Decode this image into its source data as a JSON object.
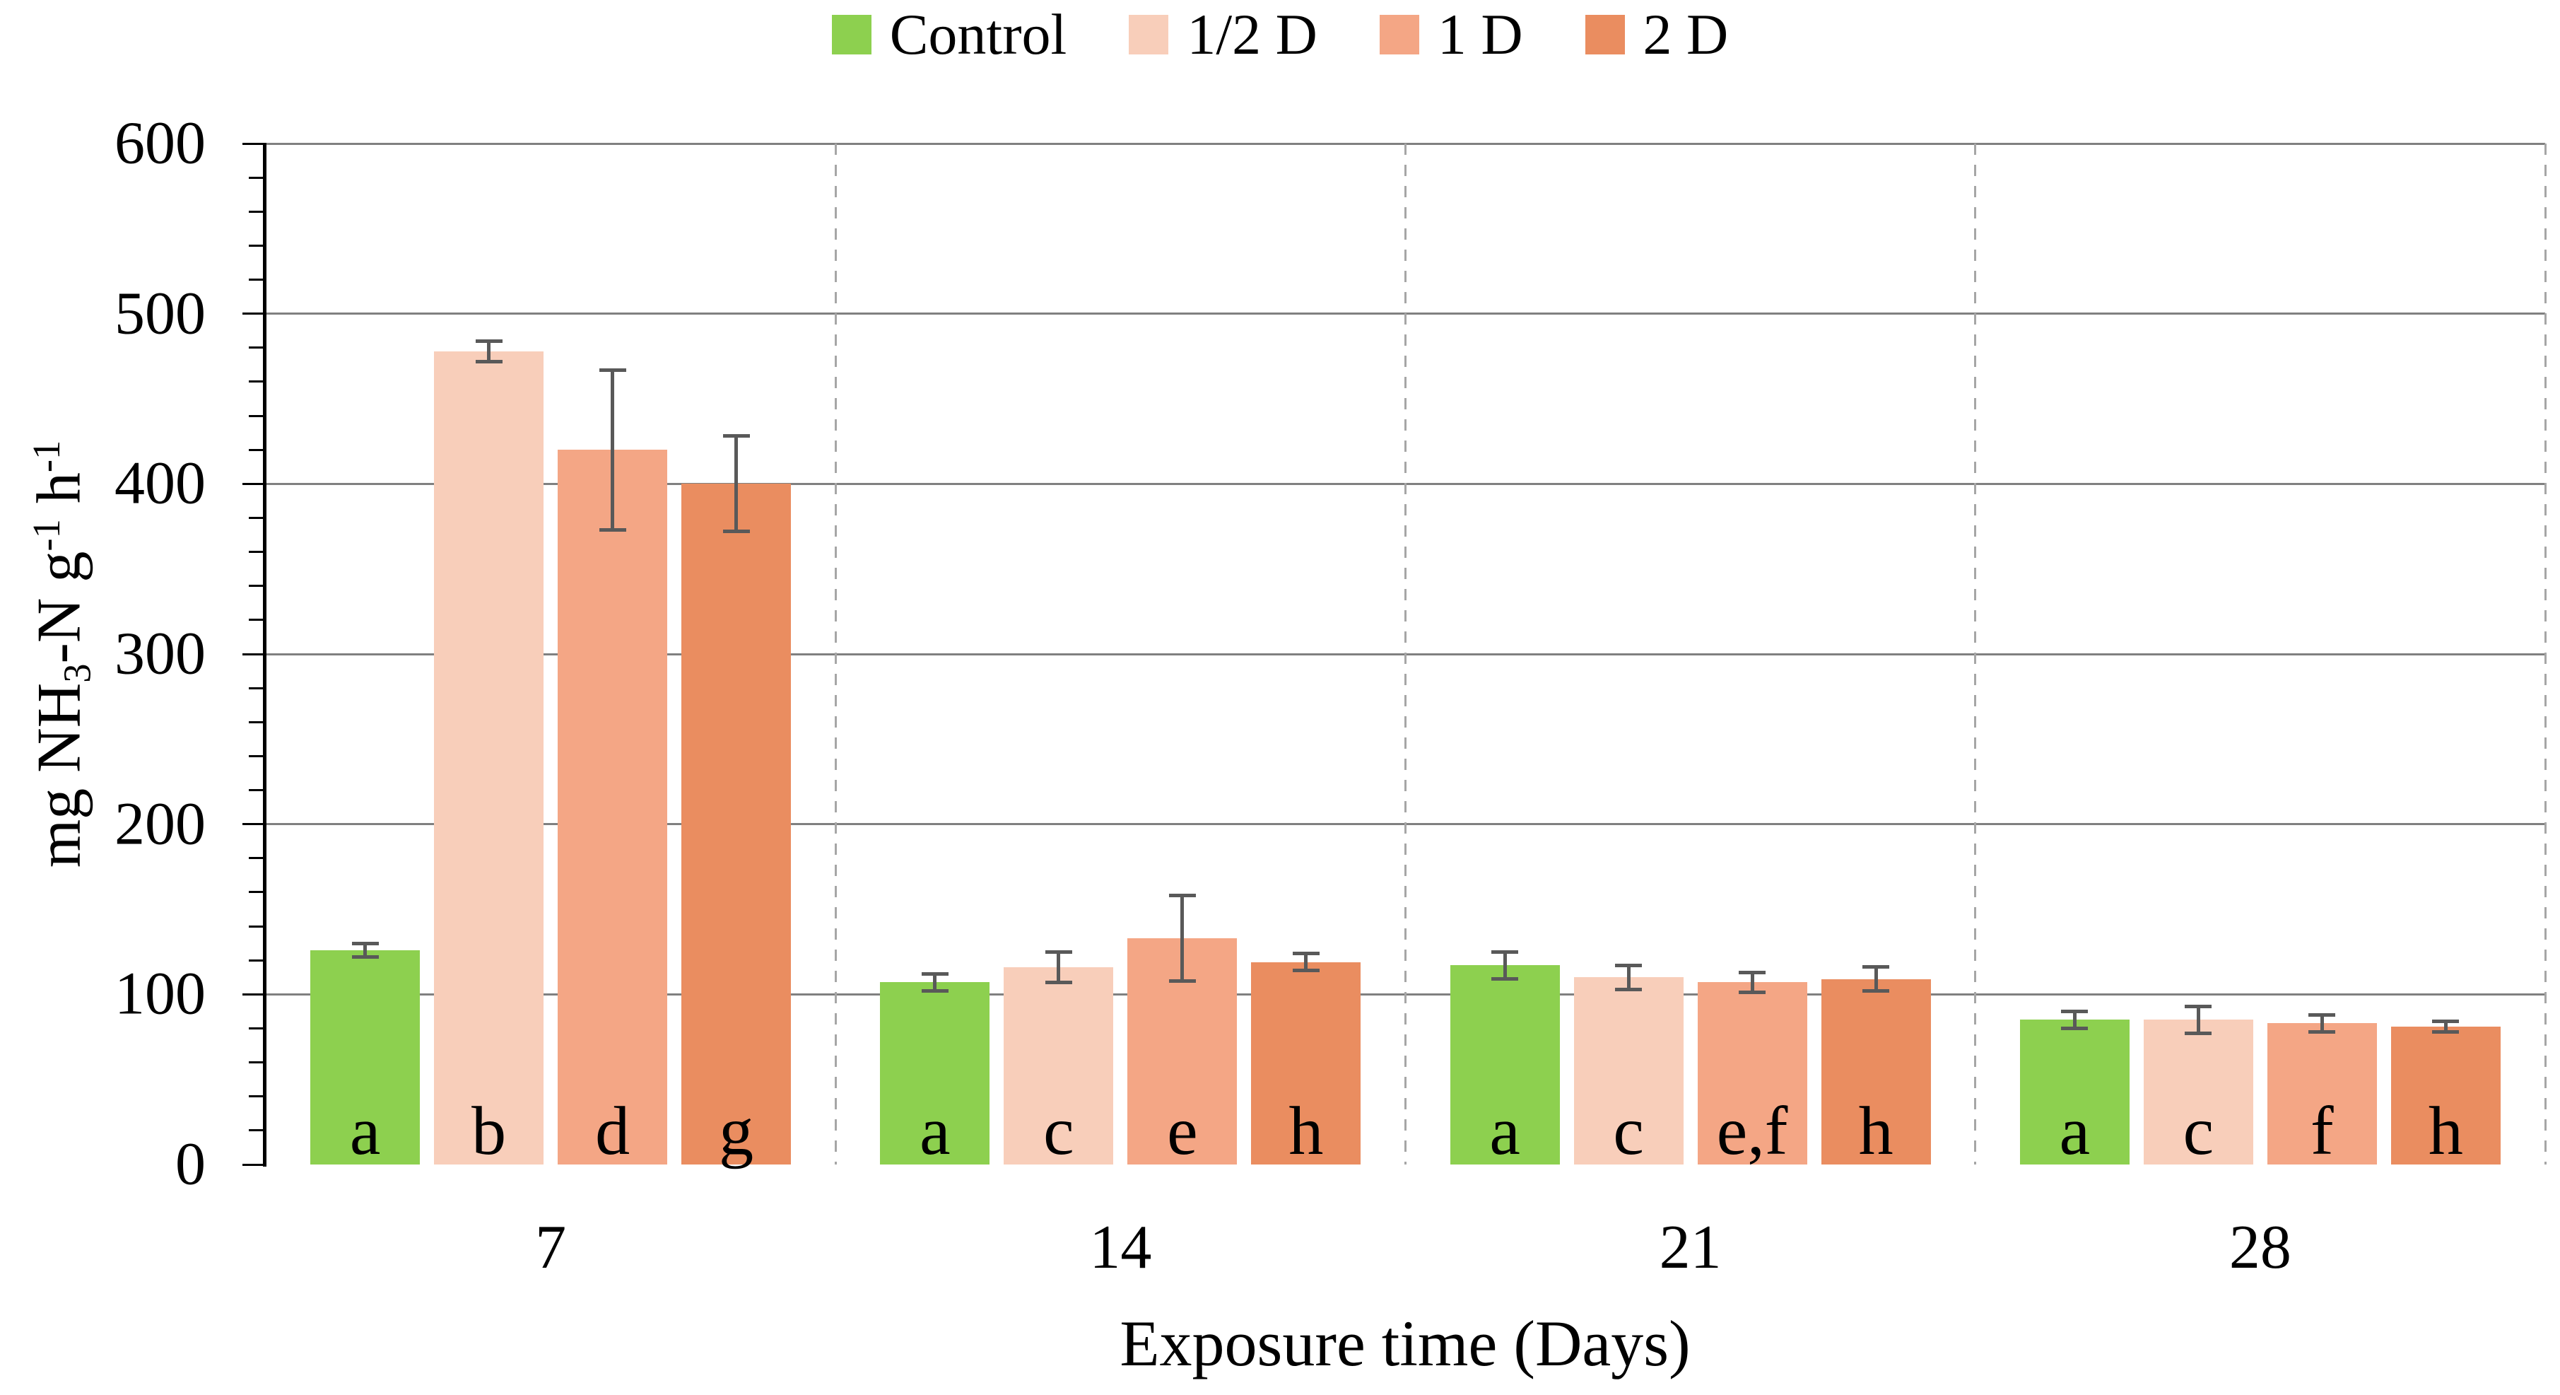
{
  "chart_data": {
    "type": "bar",
    "title": "",
    "xlabel": "Exposure time (Days)",
    "ylabel": "mg NH3-N g-1 h-1",
    "ylabel_parts": [
      {
        "text": "mg NH",
        "style": "normal"
      },
      {
        "text": "3",
        "style": "sub"
      },
      {
        "text": "-N g",
        "style": "normal"
      },
      {
        "text": "-1",
        "style": "sup"
      },
      {
        "text": " h",
        "style": "normal"
      },
      {
        "text": "-1",
        "style": "sup"
      }
    ],
    "categories": [
      "7",
      "14",
      "21",
      "28"
    ],
    "series": [
      {
        "name": "Control",
        "color": "#8DD04F",
        "values": [
          126,
          107,
          117,
          85
        ],
        "errors": [
          4,
          5,
          8,
          5
        ],
        "significance_letters": [
          "a",
          "a",
          "a",
          "a"
        ]
      },
      {
        "name": "1/2 D",
        "color": "#F8CEBA",
        "values": [
          478,
          116,
          110,
          85
        ],
        "errors": [
          6,
          9,
          7,
          8
        ],
        "significance_letters": [
          "b",
          "c",
          "c",
          "c"
        ]
      },
      {
        "name": "1 D",
        "color": "#F4A685",
        "values": [
          420,
          133,
          107,
          83
        ],
        "errors": [
          47,
          25,
          6,
          5
        ],
        "significance_letters": [
          "d",
          "e",
          "e,f",
          "f"
        ]
      },
      {
        "name": "2 D",
        "color": "#EA8D60",
        "values": [
          400,
          119,
          109,
          81
        ],
        "errors": [
          28,
          5,
          7,
          3
        ],
        "significance_letters": [
          "g",
          "h",
          "h",
          "h"
        ]
      }
    ],
    "ylim": [
      0,
      600
    ],
    "ytick_step": 100,
    "y_minor_tick_step": 20,
    "yticks": [
      "0",
      "100",
      "200",
      "300",
      "400",
      "500",
      "600"
    ],
    "grid": "horizontal solid gridlines; dashed vertical separators at category boundaries",
    "legend_position": "top-center",
    "error_bars": "symmetric, capped"
  },
  "styles": {
    "background": "#FFFFFF",
    "text_color": "#000000",
    "axis_color": "#000000",
    "gridline_color": "#808080",
    "separator_color": "#A6A6A6",
    "error_bar_color": "#595959",
    "control_color": "#8DD04F",
    "half_dose_color": "#F8CEBA",
    "one_dose_color": "#F4A685",
    "two_dose_color": "#EA8D60"
  }
}
